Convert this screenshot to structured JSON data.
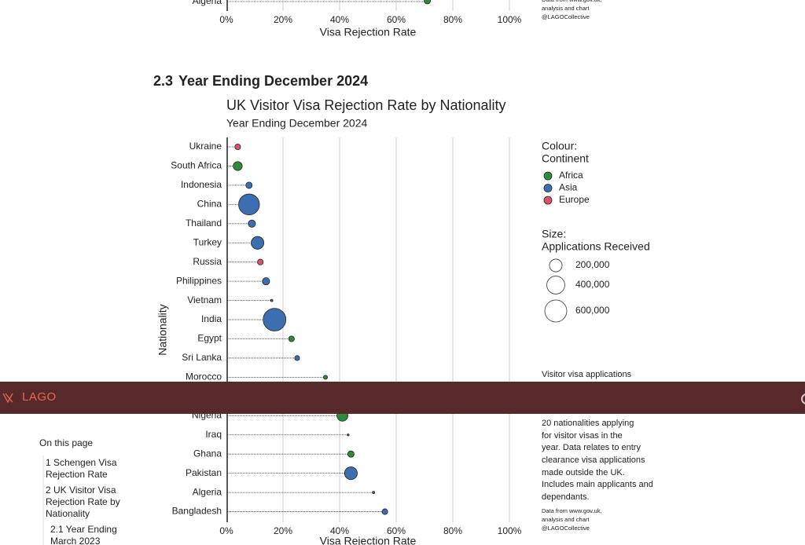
{
  "header": {
    "logo": "LAGO"
  },
  "sidebar": {
    "title": "On this page",
    "items": [
      {
        "lines": [
          "1 Schengen Visa",
          "Rejection Rate"
        ]
      },
      {
        "lines": [
          "2 UK Visitor Visa",
          "Rejection Rate by",
          "Nationality"
        ]
      },
      {
        "lines": [
          "2.1 Year Ending",
          "March 2023"
        ]
      }
    ]
  },
  "previous_chart": {
    "categories": [
      "Algeria"
    ],
    "values": [
      71
    ],
    "color": "#2e8b3a",
    "xlim": [
      0,
      100
    ],
    "xticks": [
      {
        "value": 0,
        "label": "0%"
      },
      {
        "value": 20,
        "label": "20%"
      },
      {
        "value": 40,
        "label": "40%"
      },
      {
        "value": 60,
        "label": "60%"
      },
      {
        "value": 80,
        "label": "80%"
      },
      {
        "value": 100,
        "label": "100%"
      }
    ],
    "xlabel": "Visa Rejection Rate",
    "source": [
      "Data from www.gov.uk,",
      "analysis and chart",
      "@LAGOCollective"
    ]
  },
  "section": {
    "number": "2.3",
    "title": "Year Ending December 2024"
  },
  "chart_data": {
    "type": "bubble",
    "title": "UK Visitor Visa Rejection Rate by Nationality",
    "subtitle": "Year Ending December 2024",
    "ylabel": "Nationality",
    "xlabel": "Visa Rejection Rate",
    "categories": [
      "Ukraine",
      "South Africa",
      "Indonesia",
      "China",
      "Thailand",
      "Turkey",
      "Russia",
      "Philippines",
      "Vietnam",
      "India",
      "Egypt",
      "Sri Lanka",
      "Morocco",
      null,
      "Nigeria",
      "Iraq",
      "Ghana",
      "Pakistan",
      "Algeria",
      "Bangladesh"
    ],
    "values": [
      4,
      4,
      8,
      8,
      9,
      11,
      12,
      14,
      16,
      17,
      23,
      25,
      35,
      null,
      41,
      43,
      44,
      44,
      52,
      56
    ],
    "sizes": [
      40000,
      100000,
      50000,
      540000,
      65000,
      200000,
      40000,
      65000,
      7000,
      640000,
      40000,
      30000,
      20000,
      null,
      150000,
      5000,
      50000,
      200000,
      7000,
      40000
    ],
    "groups": [
      "Europe",
      "Africa",
      "Asia",
      "Asia",
      "Asia",
      "Asia",
      "Europe",
      "Asia",
      "Asia",
      "Asia",
      "Africa",
      "Asia",
      "Africa",
      null,
      "Africa",
      "Asia",
      "Africa",
      "Asia",
      "Africa",
      "Asia"
    ],
    "xlim": [
      0,
      100
    ],
    "xticks": [
      {
        "value": 0,
        "label": "0%"
      },
      {
        "value": 20,
        "label": "20%"
      },
      {
        "value": 40,
        "label": "40%"
      },
      {
        "value": 60,
        "label": "60%"
      },
      {
        "value": 80,
        "label": "80%"
      },
      {
        "value": 100,
        "label": "100%"
      }
    ],
    "grid": true,
    "color_legend": {
      "title": [
        "Colour:",
        "Continent"
      ],
      "items": [
        {
          "name": "Africa",
          "color": "#2e8b3a"
        },
        {
          "name": "Asia",
          "color": "#3d6fb0"
        },
        {
          "name": "Europe",
          "color": "#e0506a"
        }
      ]
    },
    "size_legend": {
      "title": [
        "Size:",
        "Applications Received"
      ],
      "values": [
        200000,
        400000,
        600000
      ],
      "value_labels": [
        "200,000",
        "400,000",
        "600,000"
      ]
    },
    "note": [
      "Visitor visa applications",
      "20 nationalities applying",
      "for visitor visas in the",
      "year. Data relates to entry",
      "clearance visa applications",
      "made outside the UK.",
      "Includes main applicants and",
      "dependants."
    ],
    "source": [
      "Data from www.gov.uk,",
      "analysis and chart",
      "@LAGOCollective"
    ]
  }
}
